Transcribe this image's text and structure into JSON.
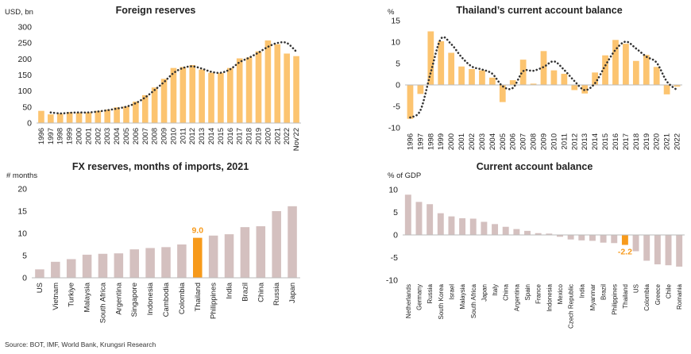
{
  "source": "Source: BOT, IMF, World Bank, Krungsri Research",
  "colors": {
    "orange_light": "#fcc470",
    "orange_dark": "#f79a1b",
    "mauve": "#d4c0bf",
    "trend": "#333333",
    "axis": "#bbbbbb"
  },
  "chart_data": [
    {
      "id": "foreign-reserves",
      "type": "bar",
      "title": "Foreign reserves",
      "ylabel": "USD, bn",
      "ylim": [
        0,
        300
      ],
      "yticks": [
        0,
        50,
        100,
        150,
        200,
        250,
        300
      ],
      "categories": [
        "1996",
        "1997",
        "1998",
        "1999",
        "2000",
        "2001",
        "2002",
        "2003",
        "2004",
        "2005",
        "2006",
        "2007",
        "2008",
        "2009",
        "2010",
        "2011",
        "2012",
        "2013",
        "2014",
        "2015",
        "2016",
        "2017",
        "2018",
        "2019",
        "2020",
        "2021",
        "2022",
        "Nov'22"
      ],
      "values": [
        38,
        27,
        29,
        34,
        32,
        33,
        38,
        42,
        49,
        52,
        67,
        87,
        111,
        138,
        172,
        175,
        181,
        167,
        157,
        156,
        172,
        202,
        205,
        224,
        258,
        246,
        217,
        209
      ],
      "trend": [
        null,
        33,
        30,
        32,
        33,
        33,
        36,
        40,
        45,
        51,
        62,
        80,
        103,
        128,
        156,
        172,
        177,
        170,
        160,
        157,
        168,
        190,
        204,
        220,
        238,
        250,
        250,
        223
      ]
    },
    {
      "id": "current-account",
      "type": "bar",
      "title": "Thailand’s current account balance",
      "ylabel": "%",
      "ylim": [
        -10,
        15
      ],
      "yticks": [
        -10,
        -5,
        0,
        5,
        10,
        15
      ],
      "categories": [
        "1996",
        "1997",
        "1998",
        "1999",
        "2000",
        "2001",
        "2002",
        "2003",
        "2004",
        "2005",
        "2006",
        "2007",
        "2008",
        "2009",
        "2010",
        "2011",
        "2012",
        "2013",
        "2014",
        "2015",
        "2016",
        "2017",
        "2018",
        "2019",
        "2020",
        "2021",
        "2022"
      ],
      "values": [
        -7.9,
        -2.1,
        12.5,
        10.2,
        7.5,
        4.3,
        3.7,
        3.4,
        1.7,
        -4.0,
        1.1,
        5.9,
        0.3,
        7.9,
        3.4,
        2.6,
        -1.2,
        -2.0,
        2.9,
        6.9,
        10.5,
        9.6,
        5.6,
        7.0,
        4.2,
        -2.2,
        -0.4
      ],
      "trend": [
        -7.6,
        -5.9,
        2.9,
        10.8,
        9.5,
        6.5,
        4.3,
        3.6,
        2.6,
        -0.3,
        -0.7,
        3.2,
        3.3,
        4.2,
        5.5,
        3.5,
        0.9,
        -1.2,
        0.4,
        4.5,
        8.2,
        10.1,
        8.5,
        6.6,
        5.2,
        0.8,
        -1.2
      ]
    },
    {
      "id": "fx-months",
      "type": "bar",
      "title": "FX reserves, months of imports, 2021",
      "ylabel": "# months",
      "ylim": [
        0,
        20
      ],
      "yticks": [
        0,
        5,
        10,
        15,
        20
      ],
      "highlight": "Thailand",
      "highlight_label": "9.0",
      "categories": [
        "US",
        "Vietnam",
        "Turkiye",
        "Malaysia",
        "South Africa",
        "Argentina",
        "Singapore",
        "Indonesia",
        "Cambodia",
        "Colombia",
        "Thailand",
        "Philippines",
        "India",
        "Brazil",
        "China",
        "Russia",
        "Japan"
      ],
      "values": [
        1.9,
        3.6,
        4.2,
        5.2,
        5.4,
        5.5,
        6.4,
        6.7,
        6.9,
        7.5,
        9.0,
        9.5,
        9.8,
        11.4,
        11.6,
        15.0,
        16.1
      ]
    },
    {
      "id": "ca-gdp",
      "type": "bar",
      "title": "Current account balance",
      "ylabel": "% of GDP",
      "ylim": [
        -10,
        10
      ],
      "yticks": [
        -10,
        -5,
        0,
        5,
        10
      ],
      "highlight": "Thailand",
      "highlight_label": "-2.2",
      "categories": [
        "Netherlands",
        "Germany",
        "Russia",
        "South Korea",
        "Israel",
        "Malaysia",
        "South Africa",
        "Japan",
        "Italy",
        "China",
        "Argentina",
        "Spain",
        "France",
        "Indonesia",
        "Mexico",
        "Czech Republic",
        "India",
        "Myanmar",
        "Brazil",
        "Philippines",
        "Thailand",
        "US",
        "Colombia",
        "Greece",
        "Chile",
        "Romania"
      ],
      "values": [
        8.9,
        7.3,
        6.8,
        4.8,
        4.1,
        3.7,
        3.6,
        2.9,
        2.4,
        1.8,
        1.3,
        0.9,
        0.4,
        0.3,
        -0.4,
        -1.0,
        -1.2,
        -1.3,
        -1.7,
        -1.8,
        -2.2,
        -3.6,
        -5.7,
        -6.5,
        -6.7,
        -7.0
      ]
    }
  ]
}
